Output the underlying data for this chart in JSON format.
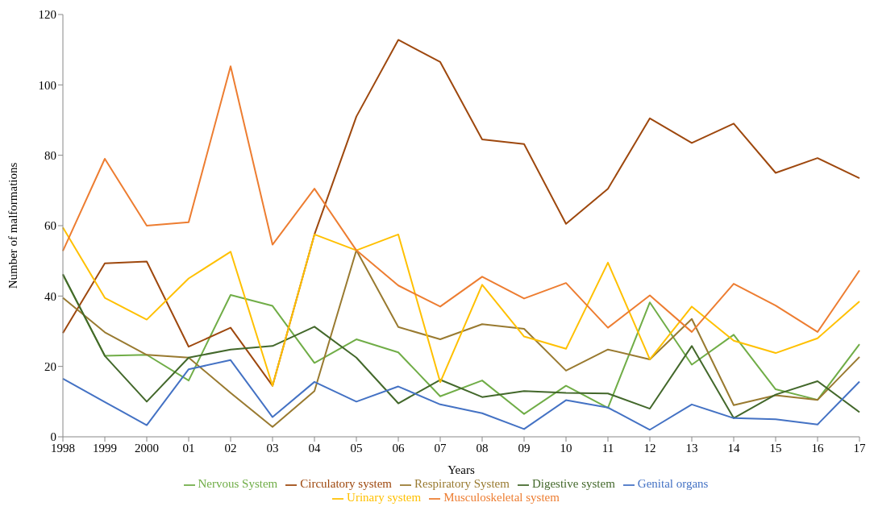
{
  "chart_data": {
    "type": "line",
    "xlabel": "Years",
    "ylabel": "Number of malformations",
    "categories": [
      "1998",
      "1999",
      "2000",
      "01",
      "02",
      "03",
      "04",
      "05",
      "06",
      "07",
      "08",
      "09",
      "10",
      "11",
      "12",
      "13",
      "14",
      "15",
      "16",
      "17"
    ],
    "series": [
      {
        "name": "Nervous System",
        "color": "#70ad47",
        "values": [
          46,
          23,
          23.3,
          16,
          40.3,
          37.2,
          21,
          27.7,
          24,
          11.5,
          16,
          6.5,
          14.5,
          8.2,
          38.2,
          20.5,
          29,
          13.5,
          10.5,
          26.3
        ]
      },
      {
        "name": "Circulatory system",
        "color": "#9e480e",
        "values": [
          29.5,
          49.3,
          49.8,
          25.6,
          31,
          14.5,
          57.5,
          91,
          112.8,
          106.5,
          84.5,
          83.2,
          60.5,
          70.5,
          90.5,
          83.5,
          89,
          75,
          79.2,
          73.5
        ]
      },
      {
        "name": "Respiratory System",
        "color": "#997a30",
        "values": [
          39.5,
          29.7,
          23.3,
          22.5,
          12.5,
          2.8,
          13,
          53,
          31.2,
          27.7,
          32,
          30.7,
          18.8,
          24.8,
          22,
          33.5,
          9,
          11.8,
          10.5,
          22.7
        ]
      },
      {
        "name": "Digestive system",
        "color": "#43682b",
        "values": [
          46.2,
          23,
          10,
          22.5,
          24.8,
          25.8,
          31.3,
          22.5,
          9.5,
          16.2,
          11.3,
          13,
          12.5,
          12.3,
          8,
          25.8,
          5.3,
          12,
          15.8,
          7
        ]
      },
      {
        "name": "Genital organs",
        "color": "#4472c4",
        "values": [
          16.5,
          9.9,
          3.3,
          19.2,
          21.8,
          5.6,
          15.6,
          10,
          14.3,
          9.2,
          6.7,
          2.2,
          10.4,
          8.3,
          2,
          9.2,
          5.3,
          5,
          3.5,
          15.7
        ]
      },
      {
        "name": "Urinary system",
        "color": "#ffc000",
        "values": [
          59.5,
          39.5,
          33.3,
          45,
          52.6,
          14.5,
          57.5,
          53,
          57.5,
          15.5,
          43.2,
          28.5,
          25,
          49.5,
          22,
          37,
          27.3,
          23.8,
          28,
          38.5
        ]
      },
      {
        "name": "Musculoskeletal system",
        "color": "#ed7d31",
        "values": [
          52.8,
          79,
          60,
          61,
          105.3,
          54.6,
          70.5,
          53,
          43,
          37,
          45.5,
          39.3,
          43.7,
          31,
          40.2,
          29.8,
          43.5,
          37.3,
          29.8,
          47.3
        ]
      }
    ],
    "ylim": [
      0,
      120
    ],
    "yticks": [
      0,
      20,
      40,
      60,
      80,
      100,
      120
    ],
    "grid": false,
    "legend": "bottom",
    "marker": "none",
    "line_style": "solid"
  }
}
